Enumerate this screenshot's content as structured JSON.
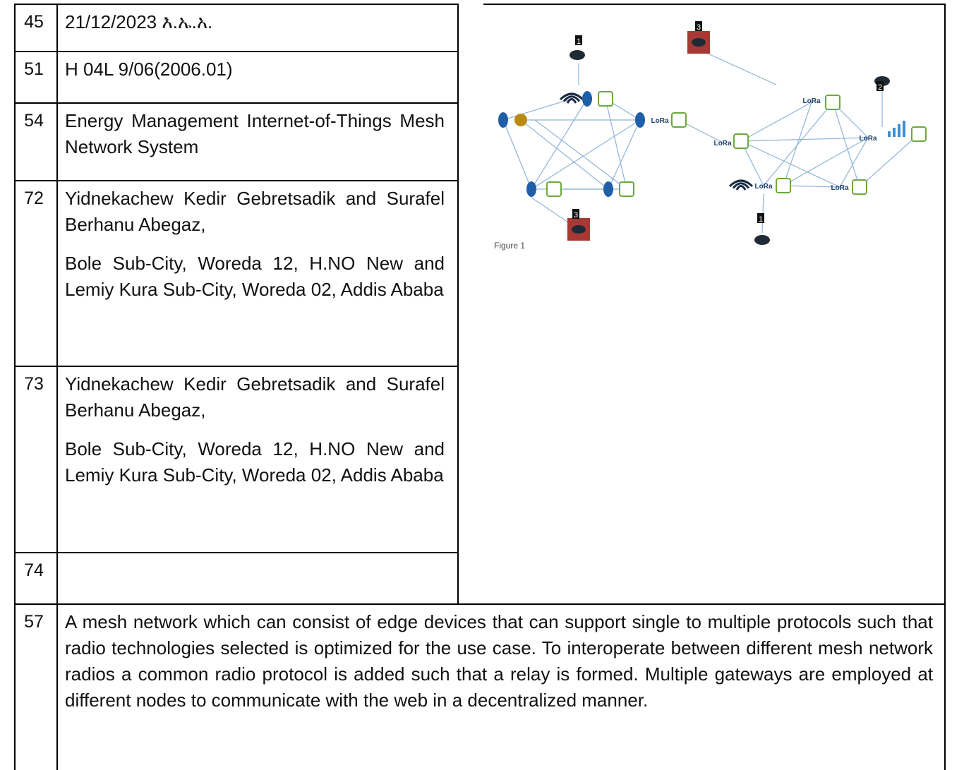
{
  "table": {
    "rows": [
      {
        "code": "45",
        "text": [
          "21/12/2023 እ.ኤ.አ."
        ]
      },
      {
        "code": "51",
        "text": [
          "H 04L 9/06(2006.01)"
        ]
      },
      {
        "code": "54",
        "text": [
          "Energy Management Internet-of-Things Mesh Network System"
        ]
      },
      {
        "code": "72",
        "text": [
          "Yidnekachew Kedir Gebretsadik and Surafel Berhanu Abegaz,",
          "Bole Sub-City, Woreda 12, H.NO New and Lemiy Kura Sub-City, Woreda 02, Addis Ababa"
        ]
      },
      {
        "code": "73",
        "text": [
          "Yidnekachew Kedir Gebretsadik and Surafel Berhanu Abegaz,",
          "Bole Sub-City, Woreda 12, H.NO New and Lemiy Kura Sub-City, Woreda 02, Addis Ababa"
        ]
      },
      {
        "code": "74",
        "text": []
      },
      {
        "code": "57",
        "text": [
          "A mesh network which can consist of edge devices that can support single to multiple protocols such that radio technologies selected is optimized for the use case. To interoperate between different mesh network radios a common radio protocol is added such that a relay is formed. Multiple gateways are employed at different nodes to communicate with the web in a decentralized manner."
        ]
      }
    ]
  },
  "figure": {
    "tags": [
      "1",
      "3",
      "2",
      "3",
      "1"
    ],
    "lora": [
      "LoRa",
      "LoRa",
      "LoRa",
      "LoRa",
      "LoRa",
      "LoRa"
    ],
    "caption": "Figure 1"
  }
}
